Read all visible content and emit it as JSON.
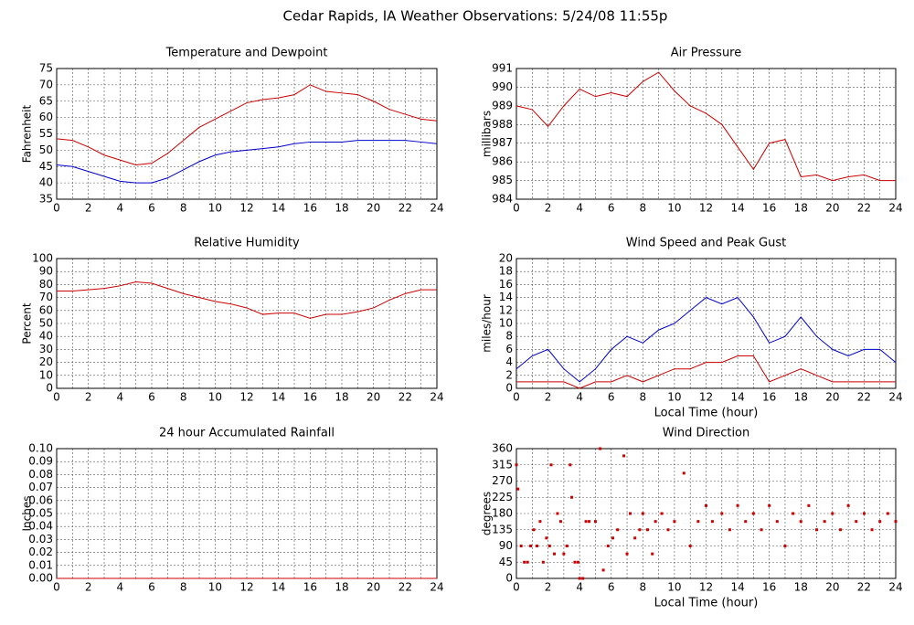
{
  "title": "Cedar Rapids, IA Weather Observations: 5/24/08 11:55p",
  "chart_data": [
    {
      "type": "line",
      "title": "Temperature and Dewpoint",
      "y_label": "Fahrenheit",
      "x": [
        0,
        1,
        2,
        3,
        4,
        5,
        6,
        7,
        8,
        9,
        10,
        11,
        12,
        13,
        14,
        15,
        16,
        17,
        18,
        19,
        20,
        21,
        22,
        23,
        24
      ],
      "series": [
        {
          "color": "#cc0000",
          "values": [
            53.5,
            53,
            51,
            48.5,
            47,
            45.5,
            46,
            49,
            53,
            57,
            59.5,
            62,
            64.5,
            65.5,
            66,
            67,
            70,
            68,
            67.5,
            67,
            65,
            62.5,
            61,
            59.5,
            59
          ]
        },
        {
          "color": "#0000cc",
          "values": [
            45.5,
            45,
            43.5,
            42,
            40.5,
            40,
            40,
            41.5,
            44,
            46.5,
            48.5,
            49.5,
            50,
            50.5,
            51,
            52,
            52.5,
            52.5,
            52.5,
            53,
            53,
            53,
            53,
            52.5,
            52
          ]
        }
      ],
      "xlim": [
        0,
        24
      ],
      "xticks": [
        0,
        2,
        4,
        6,
        8,
        10,
        12,
        14,
        16,
        18,
        20,
        22,
        24
      ],
      "xminorticks": [
        1,
        3,
        5,
        7,
        9,
        11,
        13,
        15,
        17,
        19,
        21,
        23
      ],
      "ylim": [
        35,
        75
      ],
      "yticks": [
        35,
        40,
        45,
        50,
        55,
        60,
        65,
        70,
        75
      ],
      "grid": true
    },
    {
      "type": "line",
      "title": "Air Pressure",
      "y_label": "millibars",
      "x": [
        0,
        1,
        2,
        3,
        4,
        5,
        6,
        7,
        8,
        9,
        10,
        11,
        12,
        13,
        14,
        15,
        16,
        17,
        18,
        19,
        20,
        21,
        22,
        23,
        24
      ],
      "series": [
        {
          "color": "#cc0000",
          "values": [
            989,
            988.8,
            987.9,
            989,
            989.9,
            989.5,
            989.7,
            989.5,
            990.3,
            990.8,
            989.8,
            989,
            988.6,
            988,
            986.8,
            985.6,
            987,
            987.2,
            985.2,
            985.3,
            985,
            985.2,
            985.3,
            985,
            985
          ]
        }
      ],
      "xlim": [
        0,
        24
      ],
      "xticks": [
        0,
        2,
        4,
        6,
        8,
        10,
        12,
        14,
        16,
        18,
        20,
        22,
        24
      ],
      "xminorticks": [
        1,
        3,
        5,
        7,
        9,
        11,
        13,
        15,
        17,
        19,
        21,
        23
      ],
      "ylim": [
        984,
        991
      ],
      "yticks": [
        984,
        985,
        986,
        987,
        988,
        989,
        990,
        991
      ],
      "grid": true
    },
    {
      "type": "line",
      "title": "Relative Humidity",
      "y_label": "Percent",
      "x": [
        0,
        1,
        2,
        3,
        4,
        5,
        6,
        7,
        8,
        9,
        10,
        11,
        12,
        13,
        14,
        15,
        16,
        17,
        18,
        19,
        20,
        21,
        22,
        23,
        24
      ],
      "series": [
        {
          "color": "#cc0000",
          "values": [
            75,
            75,
            76,
            77,
            79,
            82,
            81,
            77,
            73,
            70,
            67,
            65,
            62,
            57,
            58,
            58,
            54,
            57,
            57,
            59,
            62,
            68,
            73,
            76,
            76
          ]
        }
      ],
      "xlim": [
        0,
        24
      ],
      "xticks": [
        0,
        2,
        4,
        6,
        8,
        10,
        12,
        14,
        16,
        18,
        20,
        22,
        24
      ],
      "xminorticks": [
        1,
        3,
        5,
        7,
        9,
        11,
        13,
        15,
        17,
        19,
        21,
        23
      ],
      "ylim": [
        0,
        100
      ],
      "yticks": [
        0,
        10,
        20,
        30,
        40,
        50,
        60,
        70,
        80,
        90,
        100
      ],
      "grid": true
    },
    {
      "type": "line",
      "title": "Wind Speed and Peak Gust",
      "x_label": "Local Time (hour)",
      "y_label": "miles/hour",
      "x": [
        0,
        1,
        2,
        3,
        4,
        5,
        6,
        7,
        8,
        9,
        10,
        11,
        12,
        13,
        14,
        15,
        16,
        17,
        18,
        19,
        20,
        21,
        22,
        23,
        24
      ],
      "series": [
        {
          "color": "#0000cc",
          "values": [
            3,
            5,
            6,
            3,
            1,
            3,
            6,
            8,
            7,
            9,
            10,
            12,
            14,
            13,
            14,
            11,
            7,
            8,
            11,
            8,
            6,
            5,
            6,
            6,
            4
          ]
        },
        {
          "color": "#cc0000",
          "values": [
            1,
            1,
            1,
            1,
            0,
            1,
            1,
            2,
            1,
            2,
            3,
            3,
            4,
            4,
            5,
            5,
            1,
            2,
            3,
            2,
            1,
            1,
            1,
            1,
            1
          ]
        }
      ],
      "xlim": [
        0,
        24
      ],
      "xticks": [
        0,
        2,
        4,
        6,
        8,
        10,
        12,
        14,
        16,
        18,
        20,
        22,
        24
      ],
      "xminorticks": [
        1,
        3,
        5,
        7,
        9,
        11,
        13,
        15,
        17,
        19,
        21,
        23
      ],
      "ylim": [
        0,
        20
      ],
      "yticks": [
        0,
        2,
        4,
        6,
        8,
        10,
        12,
        14,
        16,
        18,
        20
      ],
      "grid": true
    },
    {
      "type": "line",
      "title": "24 hour Accumulated Rainfall",
      "y_label": "Inches",
      "x": [
        0,
        24
      ],
      "series": [
        {
          "color": "#cc0000",
          "values": [
            0,
            0
          ]
        }
      ],
      "xlim": [
        0,
        24
      ],
      "xticks": [
        0,
        2,
        4,
        6,
        8,
        10,
        12,
        14,
        16,
        18,
        20,
        22,
        24
      ],
      "xminorticks": [
        1,
        3,
        5,
        7,
        9,
        11,
        13,
        15,
        17,
        19,
        21,
        23
      ],
      "ylim": [
        0,
        0.1
      ],
      "yticks": [
        {
          "value": 0,
          "label": "0.00"
        },
        {
          "value": 0.01,
          "label": "0.01"
        },
        {
          "value": 0.02,
          "label": "0.02"
        },
        {
          "value": 0.03,
          "label": "0.03"
        },
        {
          "value": 0.04,
          "label": "0.04"
        },
        {
          "value": 0.05,
          "label": "0.05"
        },
        {
          "value": 0.06,
          "label": "0.06"
        },
        {
          "value": 0.07,
          "label": "0.07"
        },
        {
          "value": 0.08,
          "label": "0.08"
        },
        {
          "value": 0.09,
          "label": "0.09"
        },
        {
          "value": 0.1,
          "label": "0.10"
        }
      ],
      "grid": true
    },
    {
      "type": "scatter",
      "title": "Wind Direction",
      "x_label": "Local Time (hour)",
      "y_label": "degrees",
      "x": [
        0,
        0.1,
        0.3,
        0.5,
        0.7,
        0.9,
        1.1,
        1.3,
        1.5,
        1.7,
        1.9,
        2.1,
        2.2,
        2.4,
        2.6,
        2.8,
        3,
        3.2,
        3.4,
        3.5,
        3.7,
        3.9,
        4,
        4.2,
        4.4,
        4.6,
        5,
        5.3,
        5.5,
        5.8,
        6.1,
        6.4,
        6.8,
        7,
        7.2,
        7.5,
        7.8,
        8,
        8.3,
        8.6,
        8.8,
        9.2,
        9.6,
        10,
        10.6,
        11,
        11.5,
        12,
        12.4,
        13,
        13.5,
        14,
        14.5,
        15,
        15.5,
        16,
        16.5,
        17,
        17.5,
        18,
        18.5,
        19,
        19.5,
        20,
        20.5,
        21,
        21.5,
        22,
        22.5,
        23,
        23.5,
        24
      ],
      "series": [
        {
          "color": "#cc0000",
          "values": [
            315,
            248,
            90,
            45,
            45,
            90,
            135,
            90,
            158,
            45,
            112,
            90,
            315,
            68,
            180,
            158,
            68,
            90,
            315,
            225,
            45,
            45,
            0,
            0,
            158,
            158,
            158,
            360,
            23,
            90,
            112,
            135,
            340,
            68,
            180,
            112,
            135,
            180,
            135,
            68,
            158,
            180,
            135,
            158,
            292,
            90,
            158,
            202,
            158,
            180,
            135,
            202,
            158,
            180,
            135,
            202,
            158,
            90,
            180,
            158,
            202,
            135,
            158,
            180,
            135,
            202,
            158,
            180,
            135,
            158,
            180,
            158
          ]
        }
      ],
      "xlim": [
        0,
        24
      ],
      "xticks": [
        0,
        2,
        4,
        6,
        8,
        10,
        12,
        14,
        16,
        18,
        20,
        22,
        24
      ],
      "xminorticks": [
        1,
        3,
        5,
        7,
        9,
        11,
        13,
        15,
        17,
        19,
        21,
        23
      ],
      "ylim": [
        0,
        360
      ],
      "yticks": [
        0,
        45,
        90,
        135,
        180,
        225,
        270,
        315,
        360
      ],
      "grid": true
    }
  ]
}
